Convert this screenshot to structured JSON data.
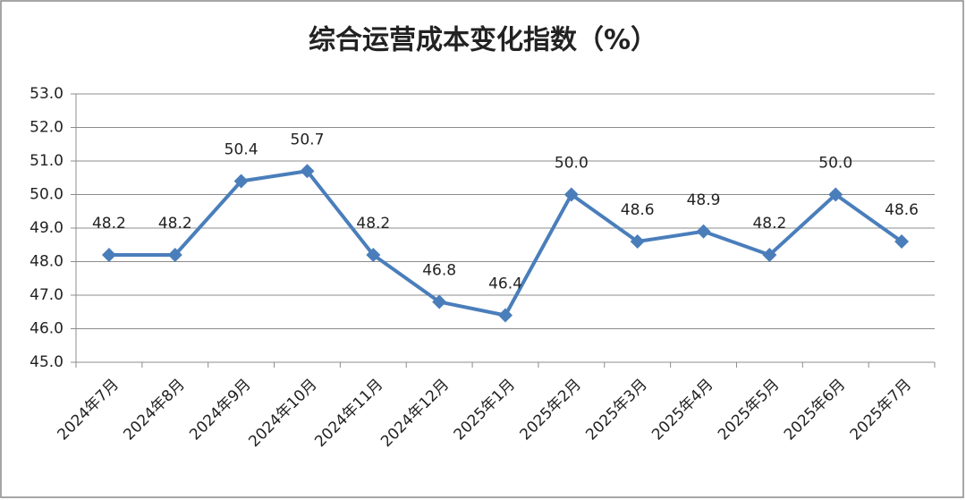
{
  "chart_data": {
    "type": "line",
    "title": "综合运营成本变化指数（%）",
    "categories": [
      "2024年7月",
      "2024年8月",
      "2024年9月",
      "2024年10月",
      "2024年11月",
      "2024年12月",
      "2025年1月",
      "2025年2月",
      "2025年3月",
      "2025年4月",
      "2025年5月",
      "2025年6月",
      "2025年7月"
    ],
    "values": [
      48.2,
      48.2,
      50.4,
      50.7,
      48.2,
      46.8,
      46.4,
      50.0,
      48.6,
      48.9,
      48.2,
      50.0,
      48.6
    ],
    "value_labels": [
      "48.2",
      "48.2",
      "50.4",
      "50.7",
      "48.2",
      "46.8",
      "46.4",
      "50.0",
      "48.6",
      "48.9",
      "48.2",
      "50.0",
      "48.6"
    ],
    "color": "#4a7ebb",
    "ylim": [
      45,
      53
    ],
    "yticks": [
      {
        "value": 45,
        "label": "45.0"
      },
      {
        "value": 46,
        "label": "46.0"
      },
      {
        "value": 47,
        "label": "47.0"
      },
      {
        "value": 48,
        "label": "48.0"
      },
      {
        "value": 49,
        "label": "49.0"
      },
      {
        "value": 50,
        "label": "50.0"
      },
      {
        "value": 51,
        "label": "51.0"
      },
      {
        "value": 52,
        "label": "52.0"
      },
      {
        "value": 53,
        "label": "53.0"
      }
    ],
    "grid": true
  }
}
